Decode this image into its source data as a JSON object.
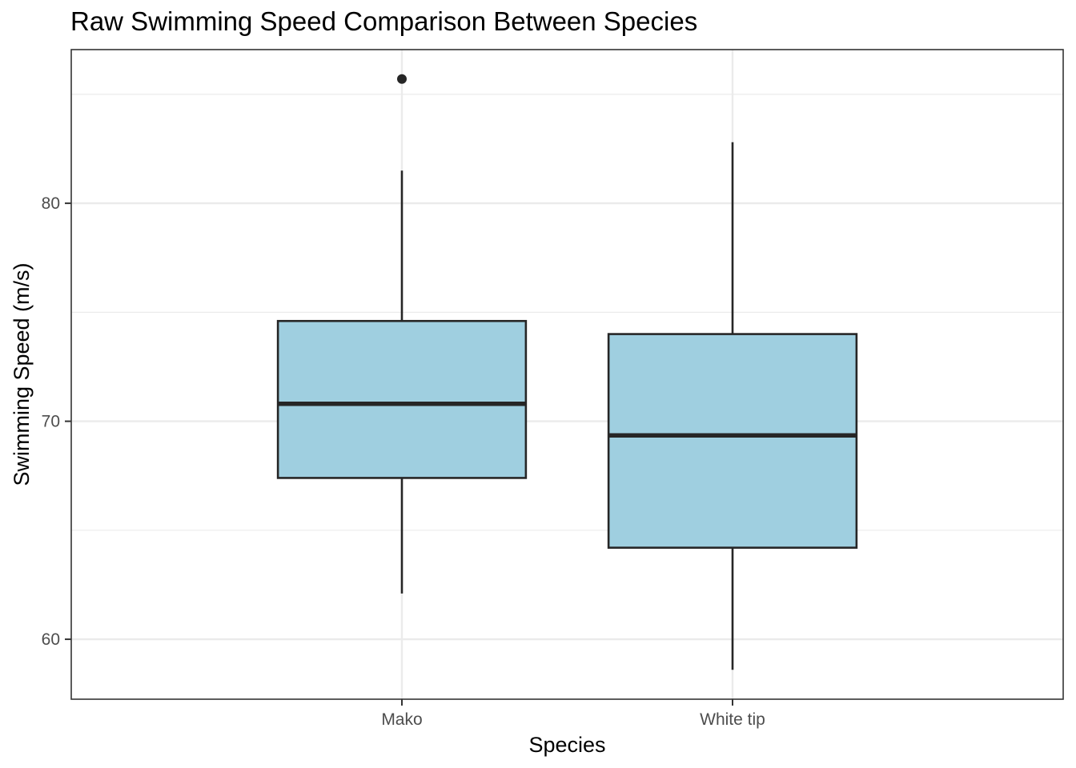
{
  "chart_data": {
    "type": "boxplot",
    "title": "Raw Swimming Speed Comparison Between Species",
    "xlabel": "Species",
    "ylabel": "Swimming Speed (m/s)",
    "categories": [
      "Mako",
      "White tip"
    ],
    "boxes": [
      {
        "category": "Mako",
        "whisker_low": 62.1,
        "q1": 67.4,
        "median": 70.8,
        "q3": 74.6,
        "whisker_high": 81.5,
        "outliers": [
          85.7
        ]
      },
      {
        "category": "White tip",
        "whisker_low": 58.6,
        "q1": 64.2,
        "median": 69.35,
        "q3": 74.0,
        "whisker_high": 82.8,
        "outliers": []
      }
    ],
    "y_ticks": [
      60,
      70,
      80
    ],
    "ylim": [
      57.25,
      87.05
    ],
    "grid": true,
    "fill_color": "#9FCFE0",
    "line_color": "#262626",
    "grid_color": "#EBEBEB",
    "legend": "none"
  }
}
